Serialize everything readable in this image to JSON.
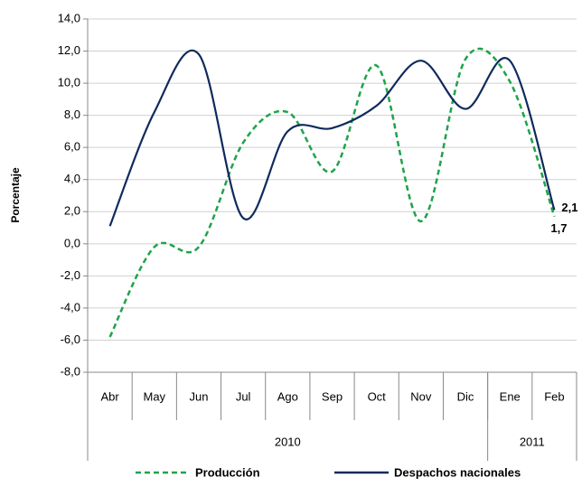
{
  "chart_data": {
    "type": "line",
    "y_label": "Porcentaje",
    "categories": [
      "Abr",
      "May",
      "Jun",
      "Jul",
      "Ago",
      "Sep",
      "Oct",
      "Nov",
      "Dic",
      "Ene",
      "Feb"
    ],
    "x_groups": [
      {
        "label": "2010",
        "count": 9
      },
      {
        "label": "2011",
        "count": 2
      }
    ],
    "series": [
      {
        "name": "Producción",
        "color": "#1fa34a",
        "dash": true,
        "values": [
          -5.8,
          -0.2,
          -0.2,
          6.3,
          8.2,
          4.5,
          11.1,
          1.4,
          11.5,
          10.1,
          1.7
        ],
        "value_labels": [
          null,
          null,
          null,
          null,
          null,
          null,
          null,
          null,
          null,
          null,
          "1,7"
        ]
      },
      {
        "name": "Despachos nacionales",
        "color": "#0f2a5c",
        "dash": false,
        "values": [
          1.1,
          8.2,
          11.8,
          1.6,
          7.0,
          7.2,
          8.6,
          11.4,
          8.4,
          11.4,
          2.1
        ],
        "value_labels": [
          null,
          null,
          null,
          null,
          null,
          null,
          null,
          null,
          null,
          null,
          "2,1"
        ]
      }
    ],
    "ylim": [
      -8,
      14
    ],
    "yticks": [
      {
        "value": -8,
        "label": "-8,0"
      },
      {
        "value": -6,
        "label": "-6,0"
      },
      {
        "value": -4,
        "label": "-4,0"
      },
      {
        "value": -2,
        "label": "-2,0"
      },
      {
        "value": 0,
        "label": "0,0"
      },
      {
        "value": 2,
        "label": "2,0"
      },
      {
        "value": 4,
        "label": "4,0"
      },
      {
        "value": 6,
        "label": "6,0"
      },
      {
        "value": 8,
        "label": "8,0"
      },
      {
        "value": 10,
        "label": "10,0"
      },
      {
        "value": 12,
        "label": "12,0"
      },
      {
        "value": 14,
        "label": "14,0"
      }
    ],
    "grid": true,
    "legend": "bottom"
  }
}
